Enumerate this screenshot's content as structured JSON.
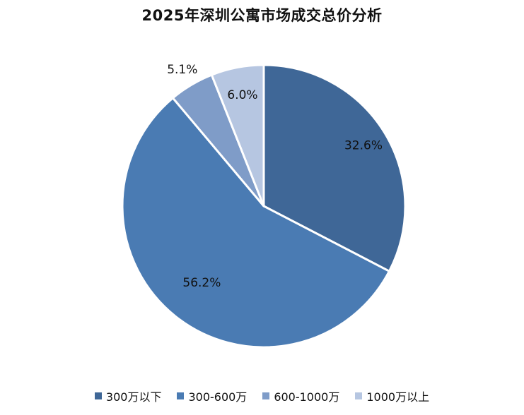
{
  "chart_data": {
    "type": "pie",
    "title": "2025年深圳公寓市场成交总价分析",
    "categories": [
      "300万以下",
      "300-600万",
      "600-1000万",
      "1000万以上"
    ],
    "values": [
      32.6,
      56.2,
      5.1,
      6.0
    ],
    "labels": [
      "32.6%",
      "56.2%",
      "5.1%",
      "6.0%"
    ],
    "colors": [
      "#3f6797",
      "#4a7bb3",
      "#7f9cc8",
      "#b6c6e1"
    ],
    "legend_position": "bottom",
    "start_angle": "12 o'clock",
    "direction": "clockwise"
  }
}
